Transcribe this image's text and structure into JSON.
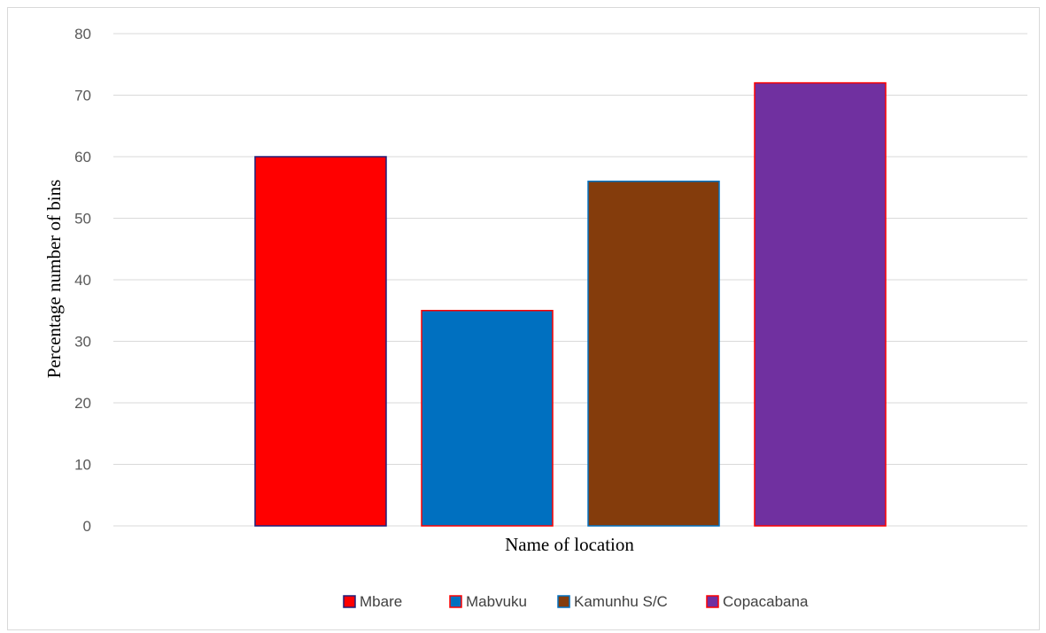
{
  "chart_data": {
    "type": "bar",
    "title": "",
    "xlabel": "Name of  location",
    "ylabel": "Percentage number of bins",
    "ylim": [
      0,
      80
    ],
    "yticks": [
      0,
      10,
      20,
      30,
      40,
      50,
      60,
      70,
      80
    ],
    "grid": true,
    "legend_position": "bottom",
    "series": [
      {
        "name": "Mbare",
        "values": [
          60
        ],
        "color": "#ff0000",
        "border": "#1f1f7a"
      },
      {
        "name": "Mabvuku",
        "values": [
          35
        ],
        "color": "#0070c0",
        "border": "#ff0000"
      },
      {
        "name": "Kamunhu S/C",
        "values": [
          56
        ],
        "color": "#843c0c",
        "border": "#0070c0"
      },
      {
        "name": "Copacabana",
        "values": [
          72
        ],
        "color": "#7030a0",
        "border": "#ff0000"
      }
    ]
  }
}
